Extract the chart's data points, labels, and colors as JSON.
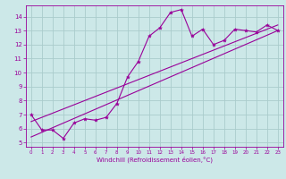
{
  "xlabel": "Windchill (Refroidissement éolien,°C)",
  "background_color": "#cce8e8",
  "grid_color": "#aacccc",
  "line_color": "#990099",
  "xlim": [
    -0.5,
    23.5
  ],
  "ylim": [
    4.7,
    14.8
  ],
  "yticks": [
    5,
    6,
    7,
    8,
    9,
    10,
    11,
    12,
    13,
    14
  ],
  "xticks": [
    0,
    1,
    2,
    3,
    4,
    5,
    6,
    7,
    8,
    9,
    10,
    11,
    12,
    13,
    14,
    15,
    16,
    17,
    18,
    19,
    20,
    21,
    22,
    23
  ],
  "series1_x": [
    0,
    1,
    2,
    3,
    4,
    5,
    6,
    7,
    8,
    9,
    10,
    11,
    12,
    13,
    14,
    15,
    16,
    17,
    18,
    19,
    20,
    21,
    22,
    23
  ],
  "series1_y": [
    7.0,
    5.9,
    5.9,
    5.3,
    6.4,
    6.7,
    6.6,
    6.8,
    7.8,
    9.7,
    10.8,
    12.6,
    13.2,
    14.3,
    14.5,
    12.6,
    13.1,
    12.0,
    12.3,
    13.1,
    13.0,
    12.9,
    13.4,
    13.0
  ],
  "trend1_x": [
    0,
    23
  ],
  "trend1_y": [
    6.5,
    13.4
  ],
  "trend2_x": [
    0,
    23
  ],
  "trend2_y": [
    5.4,
    13.0
  ]
}
